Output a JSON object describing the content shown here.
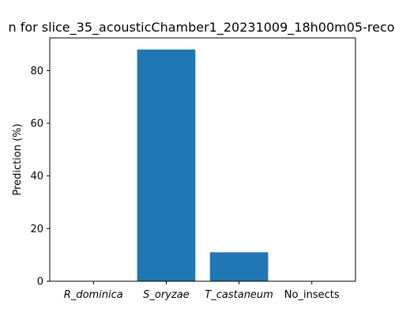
{
  "chart_data": {
    "type": "bar",
    "title": "n for slice_35_acousticChamber1_20231009_18h00m05-reco",
    "xlabel": "",
    "ylabel": "Prediction (%)",
    "categories": [
      "R_dominica",
      "S_oryzae",
      "T_castaneum",
      "No_insects"
    ],
    "italic_categories": [
      true,
      true,
      true,
      false
    ],
    "values": [
      0,
      88,
      11,
      0
    ],
    "ylim": [
      0,
      92.4
    ],
    "yticks": [
      0,
      20,
      40,
      60,
      80
    ],
    "bar_color": "#1f77b4",
    "grid": false,
    "legend": "none"
  }
}
